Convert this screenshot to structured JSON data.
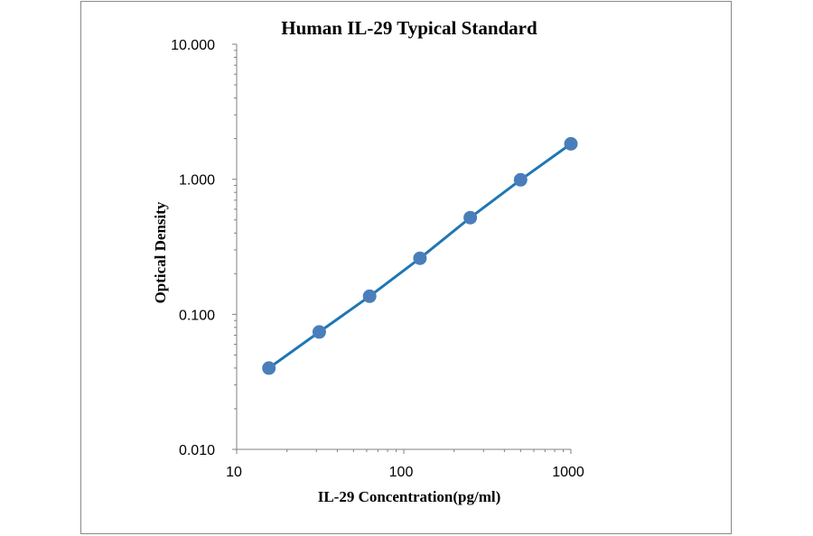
{
  "chart_data": {
    "type": "line",
    "title": "Human IL-29 Typical Standard",
    "xlabel": "IL-29 Concentration(pg/ml)",
    "ylabel": "Optical Density",
    "x_scale": "log",
    "y_scale": "log",
    "xlim": [
      10,
      1000
    ],
    "ylim": [
      0.01,
      10
    ],
    "x_ticks": [
      "10",
      "100",
      "1000"
    ],
    "y_ticks": [
      "10.000",
      "1.000",
      "0.100",
      "0.010"
    ],
    "grid": false,
    "series": [
      {
        "x": [
          15.6,
          31.2,
          62.5,
          125,
          250,
          500,
          1000
        ],
        "y": [
          0.04,
          0.074,
          0.136,
          0.26,
          0.52,
          0.99,
          1.83
        ],
        "line_color": "#1f77b4",
        "marker_color": "#4a7ebb"
      }
    ]
  }
}
